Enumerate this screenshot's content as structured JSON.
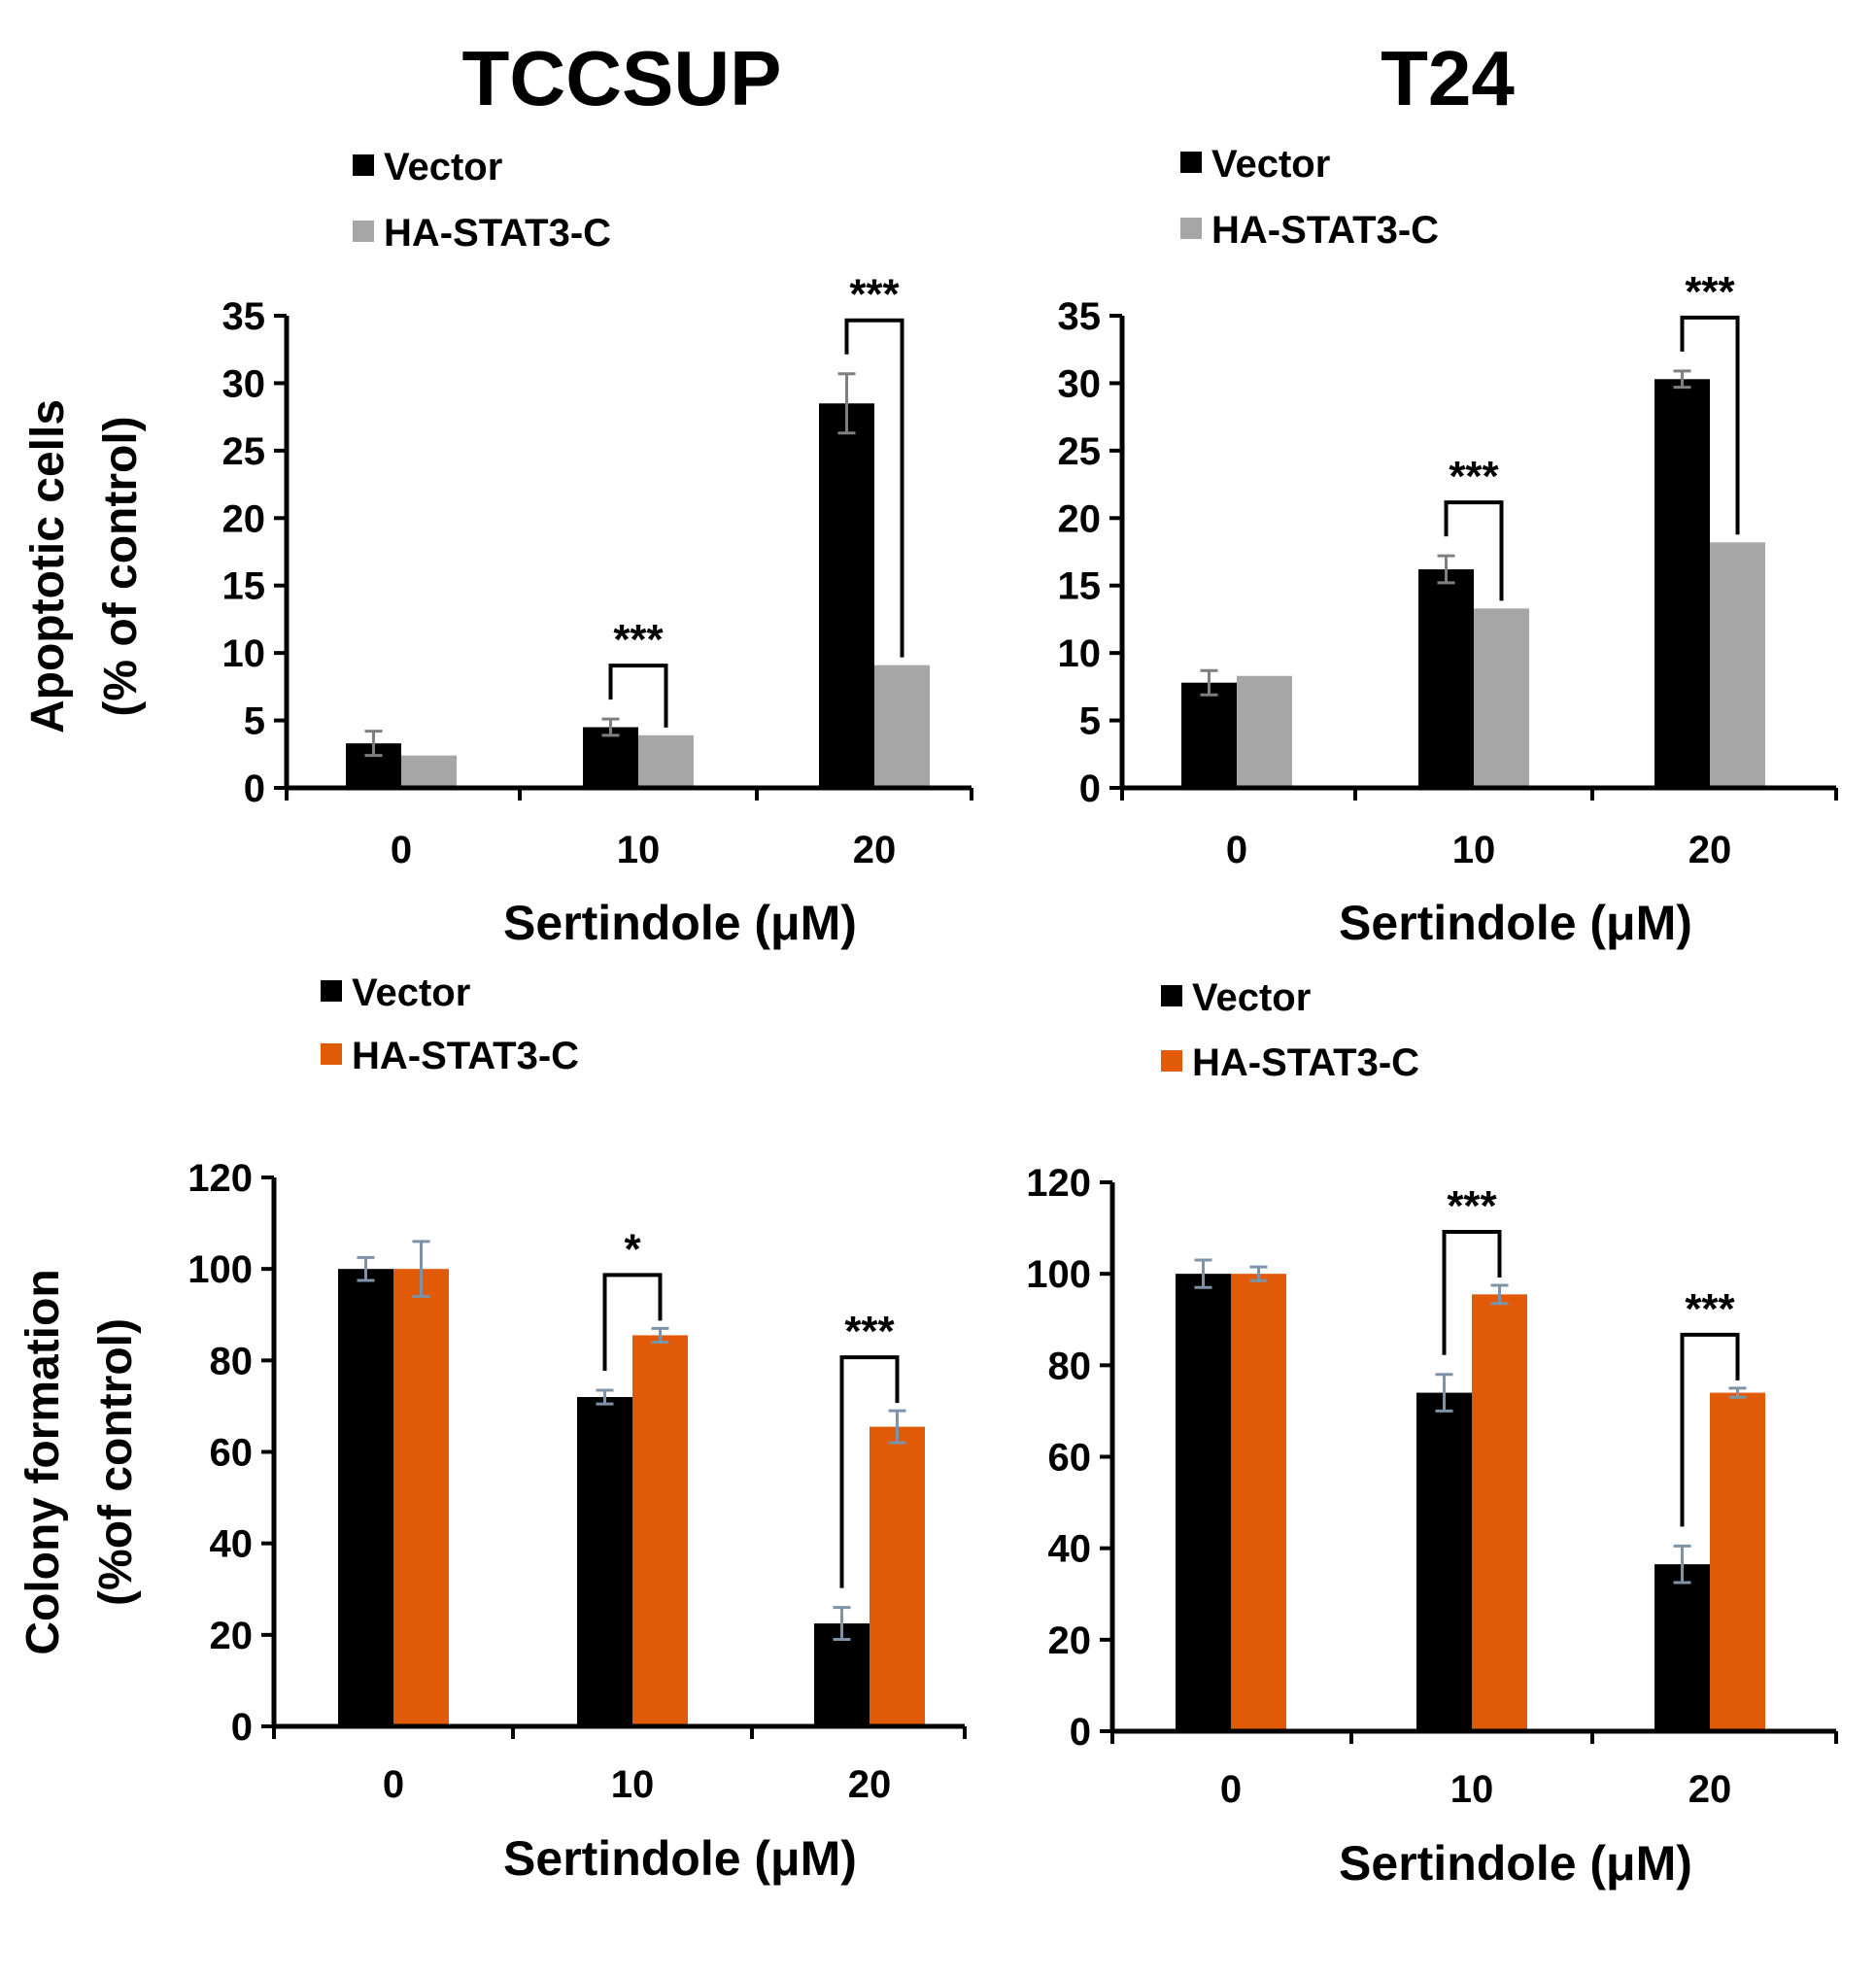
{
  "titles": [
    "TCCSUP",
    "T24"
  ],
  "colors": {
    "vector": "#000000",
    "stat3_top": "#a6a6a6",
    "stat3_bottom": "#e05a07",
    "axis": "#000000",
    "error": "#7f7f7f",
    "error_bottom": "#7f93a8"
  },
  "chart_data": [
    {
      "type": "bar",
      "panel": "top-left",
      "column_title": "TCCSUP",
      "categories": [
        "0",
        "10",
        "20"
      ],
      "series": [
        {
          "name": "Vector",
          "values": [
            3.3,
            4.5,
            28.5
          ],
          "errors": [
            0.9,
            0.6,
            2.2
          ]
        },
        {
          "name": "HA-STAT3-C",
          "values": [
            2.4,
            3.9,
            9.1
          ],
          "errors": [
            0,
            0,
            0
          ]
        }
      ],
      "ylim": [
        0,
        35
      ],
      "yticks": [
        0,
        5,
        10,
        15,
        20,
        25,
        30,
        35
      ],
      "xlabel": "Sertindole (μM)",
      "ylabel_lines": [
        "Apoptotic cells",
        "(% of control)"
      ],
      "significance": [
        {
          "category_index": 1,
          "label": "***"
        },
        {
          "category_index": 2,
          "label": "***"
        }
      ],
      "legend_position": "top-left"
    },
    {
      "type": "bar",
      "panel": "top-right",
      "column_title": "T24",
      "categories": [
        "0",
        "10",
        "20"
      ],
      "series": [
        {
          "name": "Vector",
          "values": [
            7.8,
            16.2,
            30.3
          ],
          "errors": [
            0.9,
            1.0,
            0.6
          ]
        },
        {
          "name": "HA-STAT3-C",
          "values": [
            8.3,
            13.3,
            18.2
          ],
          "errors": [
            0,
            0,
            0
          ]
        }
      ],
      "ylim": [
        0,
        35
      ],
      "yticks": [
        0,
        5,
        10,
        15,
        20,
        25,
        30,
        35
      ],
      "xlabel": "Sertindole (μM)",
      "ylabel_lines": [],
      "significance": [
        {
          "category_index": 1,
          "label": "***"
        },
        {
          "category_index": 2,
          "label": "***"
        }
      ],
      "legend_position": "top-left"
    },
    {
      "type": "bar",
      "panel": "bottom-left",
      "categories": [
        "0",
        "10",
        "20"
      ],
      "series": [
        {
          "name": "Vector",
          "values": [
            100,
            72,
            22.5
          ],
          "errors": [
            2.5,
            1.5,
            3.5
          ]
        },
        {
          "name": "HA-STAT3-C",
          "values": [
            100,
            85.5,
            65.5
          ],
          "errors": [
            6,
            1.5,
            3.5
          ]
        }
      ],
      "ylim": [
        0,
        120
      ],
      "yticks": [
        0,
        20,
        40,
        60,
        80,
        100,
        120
      ],
      "xlabel": "Sertindole (μM)",
      "ylabel_lines": [
        "Colony formation",
        "(%of control)"
      ],
      "significance": [
        {
          "category_index": 1,
          "label": "*"
        },
        {
          "category_index": 2,
          "label": "***"
        }
      ],
      "legend_position": "top-left"
    },
    {
      "type": "bar",
      "panel": "bottom-right",
      "categories": [
        "0",
        "10",
        "20"
      ],
      "series": [
        {
          "name": "Vector",
          "values": [
            100,
            74,
            36.5
          ],
          "errors": [
            3,
            4,
            4
          ]
        },
        {
          "name": "HA-STAT3-C",
          "values": [
            100,
            95.5,
            74
          ],
          "errors": [
            1.5,
            2,
            1
          ]
        }
      ],
      "ylim": [
        0,
        120
      ],
      "yticks": [
        0,
        20,
        40,
        60,
        80,
        100,
        120
      ],
      "xlabel": "Sertindole (μM)",
      "ylabel_lines": [],
      "significance": [
        {
          "category_index": 1,
          "label": "***"
        },
        {
          "category_index": 2,
          "label": "***"
        }
      ],
      "legend_position": "top-left"
    }
  ]
}
